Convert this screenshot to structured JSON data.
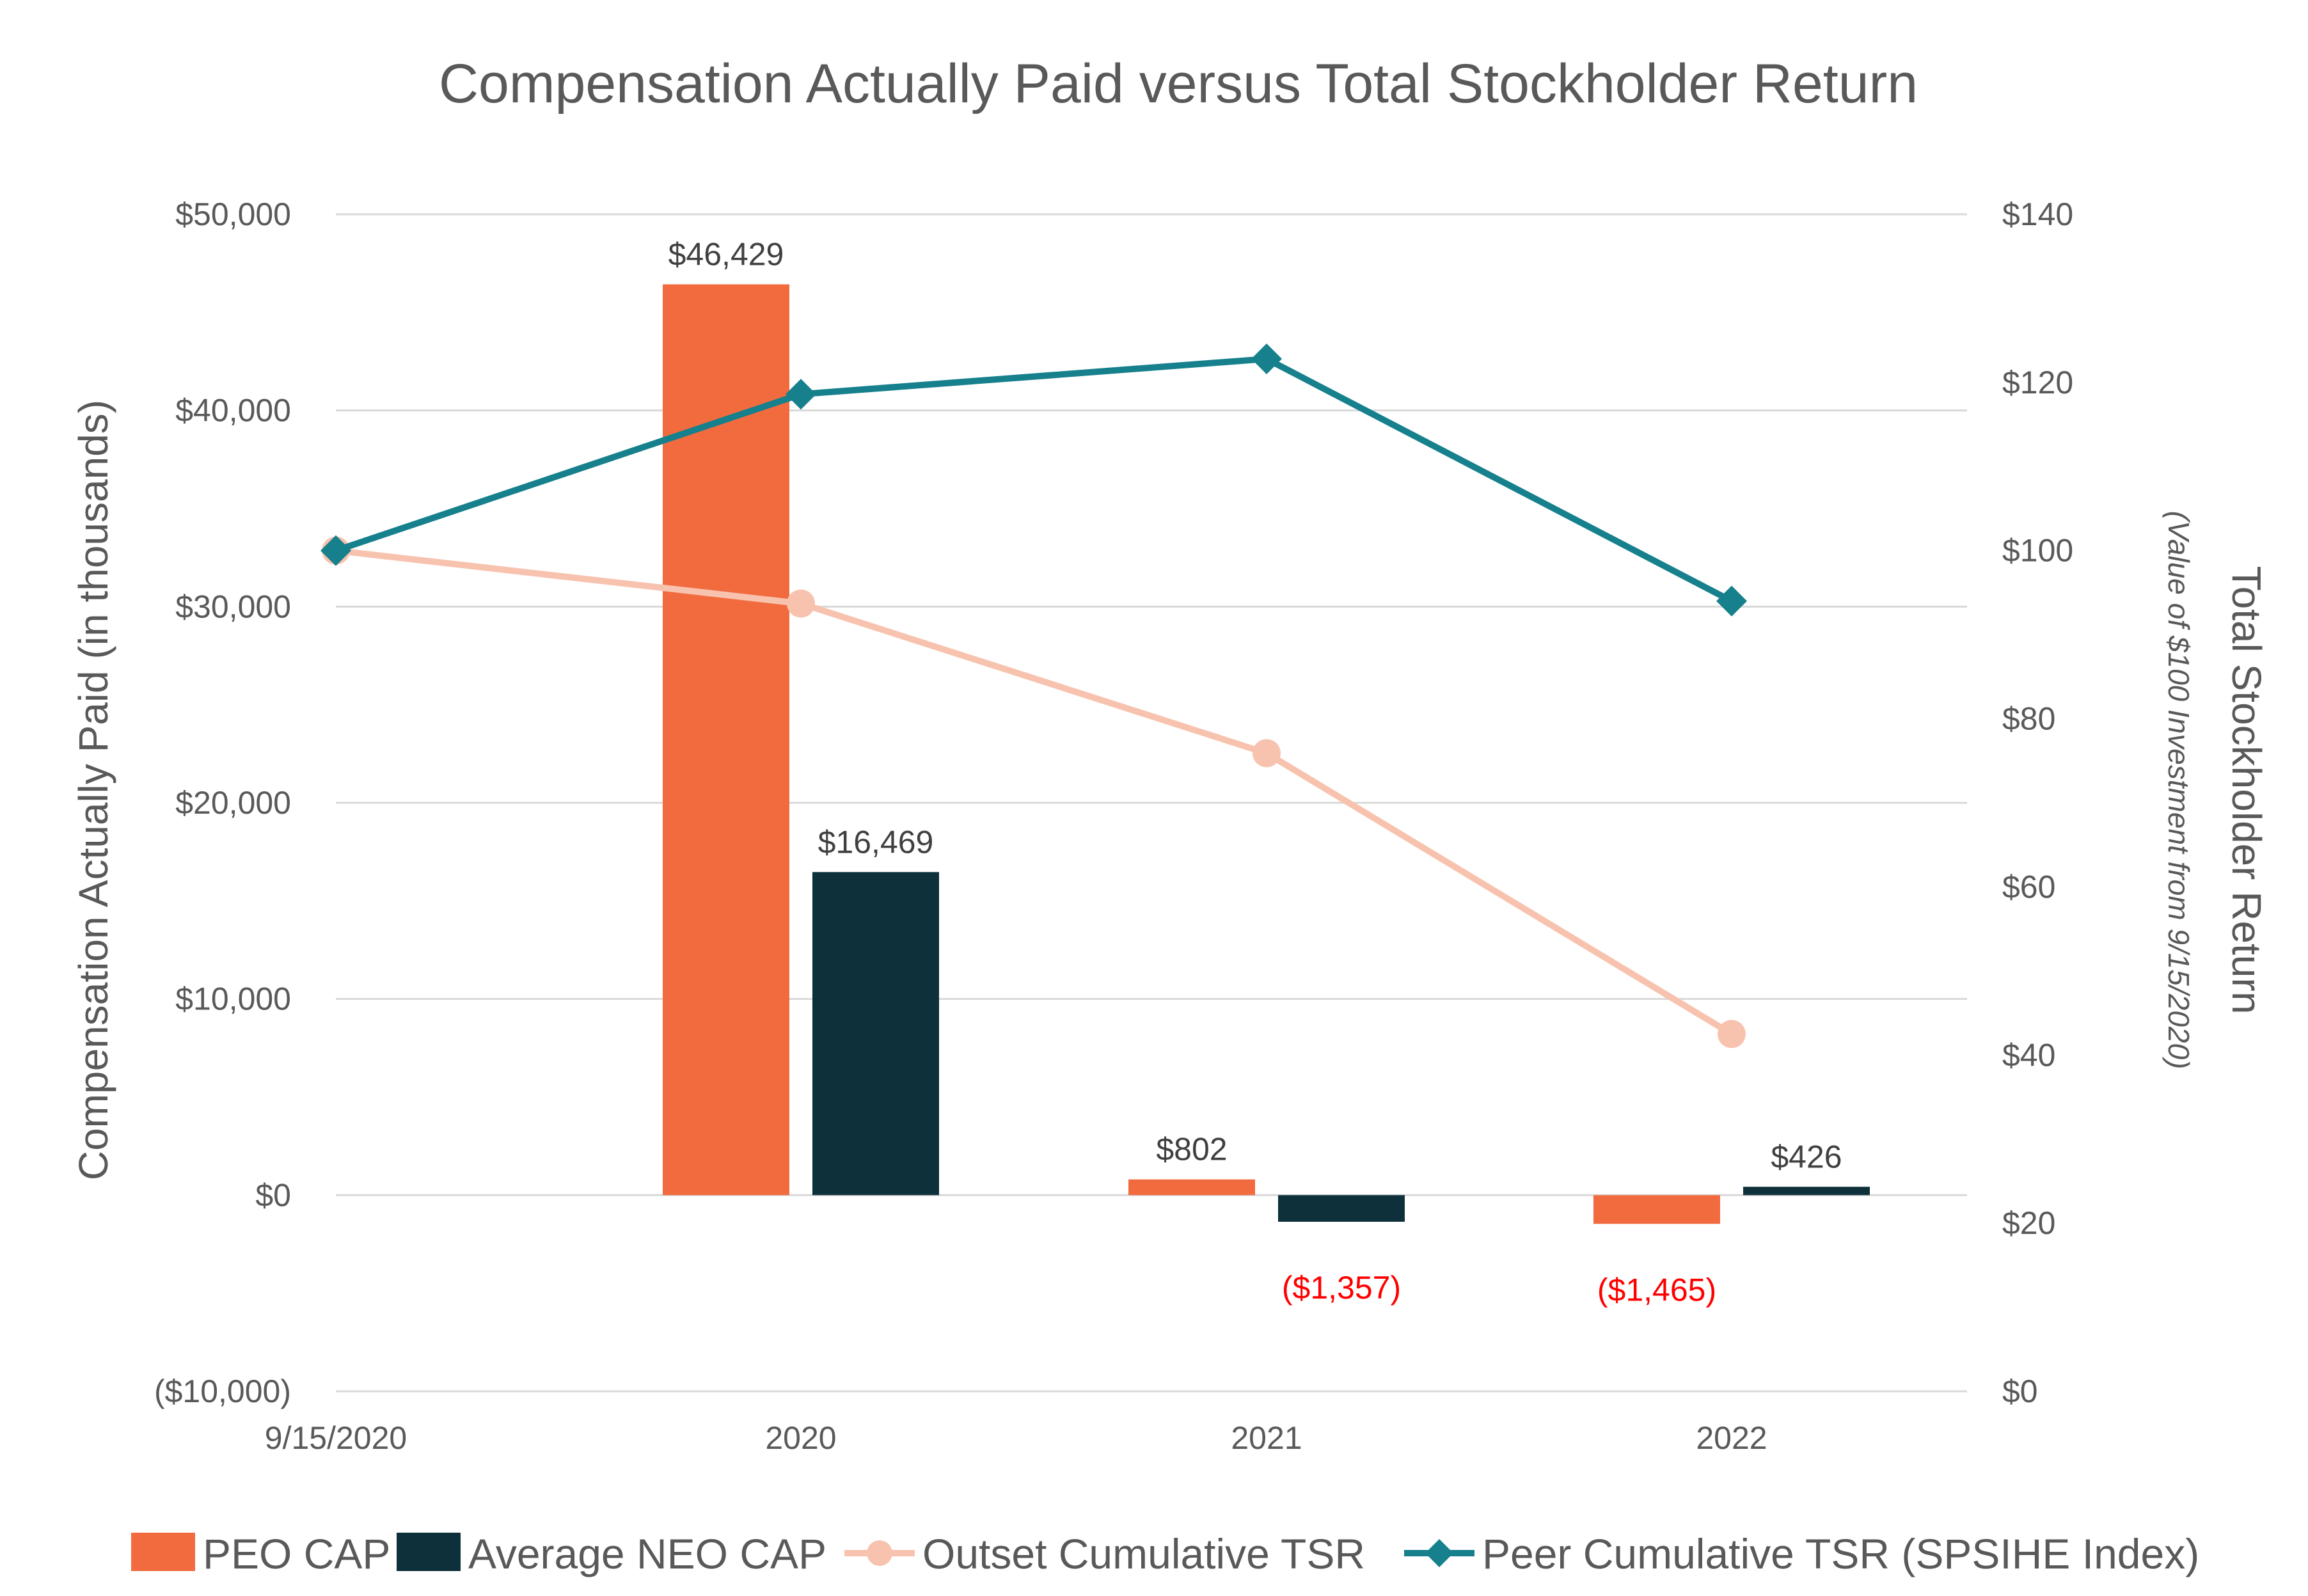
{
  "chart_data": {
    "type": "bar+line",
    "title": "Compensation Actually Paid versus Total Stockholder Return",
    "categories": [
      "9/15/2020",
      "2020",
      "2021",
      "2022"
    ],
    "y_left": {
      "label": "Compensation Actually Paid (in thousands)",
      "range": [
        -10000,
        50000
      ],
      "ticks": [
        {
          "value": 50000,
          "label": "$50,000"
        },
        {
          "value": 40000,
          "label": "$40,000"
        },
        {
          "value": 30000,
          "label": "$30,000"
        },
        {
          "value": 20000,
          "label": "$20,000"
        },
        {
          "value": 10000,
          "label": "$10,000"
        },
        {
          "value": 0,
          "label": "$0"
        },
        {
          "value": -10000,
          "label": "($10,000)",
          "negative": true
        }
      ]
    },
    "y_right": {
      "label": "Total Stockholder Return",
      "sublabel": "(Value of $100 Investment from 9/15/2020)",
      "range": [
        0,
        140
      ],
      "ticks": [
        {
          "value": 140,
          "label": "$140"
        },
        {
          "value": 120,
          "label": "$120"
        },
        {
          "value": 100,
          "label": "$100"
        },
        {
          "value": 80,
          "label": "$80"
        },
        {
          "value": 60,
          "label": "$60"
        },
        {
          "value": 40,
          "label": "$40"
        },
        {
          "value": 20,
          "label": "$20"
        },
        {
          "value": 0,
          "label": "$0"
        }
      ]
    },
    "bar_series": [
      {
        "name": "PEO CAP",
        "color": "#f26b3f",
        "values": [
          null,
          46429,
          802,
          -1465
        ],
        "labels": [
          null,
          "$46,429",
          "$802",
          "($1,465)"
        ]
      },
      {
        "name": "Average NEO CAP",
        "color": "#0d303a",
        "values": [
          null,
          16469,
          -1357,
          426
        ],
        "labels": [
          null,
          "$16,469",
          "($1,357)",
          "$426"
        ]
      }
    ],
    "line_series": [
      {
        "name": "Outset Cumulative TSR",
        "color": "#f8c3ae",
        "marker": "circle",
        "values": [
          100,
          93.7,
          75.9,
          42.5
        ]
      },
      {
        "name": "Peer Cumulative TSR (SPSIHE Index)",
        "color": "#16808c",
        "marker": "diamond",
        "values": [
          100,
          118.6,
          122.8,
          94.0
        ]
      }
    ],
    "negative_label_color": "#ff0000",
    "positive_label_color": "#404040",
    "legend_position": "bottom"
  }
}
